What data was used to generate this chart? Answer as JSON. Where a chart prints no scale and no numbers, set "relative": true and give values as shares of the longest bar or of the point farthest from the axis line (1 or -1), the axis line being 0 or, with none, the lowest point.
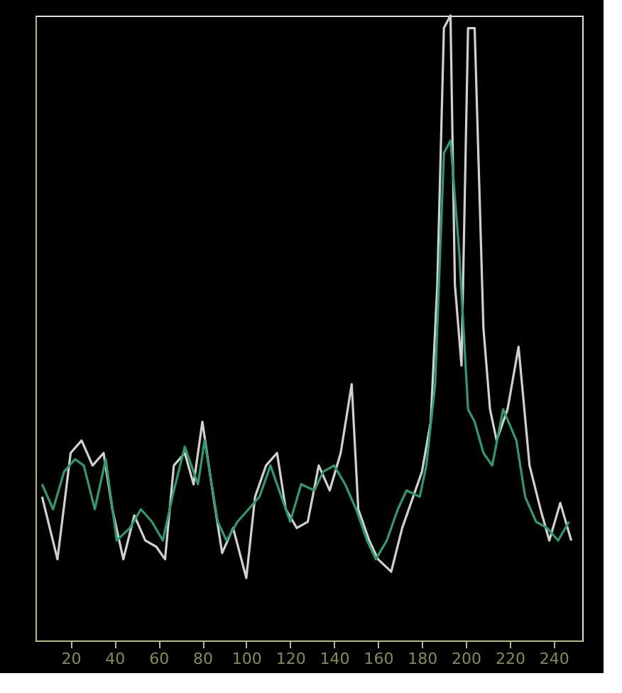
{
  "chart_data": {
    "type": "line",
    "relative": true,
    "xlim": [
      4,
      253
    ],
    "xticks": [
      20,
      40,
      60,
      80,
      100,
      120,
      140,
      160,
      180,
      200,
      220,
      240
    ],
    "grid": false,
    "legend": false,
    "marker": "none",
    "line_style": "solid",
    "series": [
      {
        "color": "#d0d0d0",
        "x": [
          7,
          14,
          20,
          25,
          30,
          35,
          39,
          44,
          49,
          54,
          59,
          63,
          67,
          72,
          76,
          80,
          85,
          89,
          94,
          100,
          104,
          109,
          114,
          118,
          123,
          128,
          133,
          138,
          143,
          148,
          151,
          156,
          160,
          166,
          171,
          175,
          180,
          184,
          187,
          190,
          193,
          195,
          198,
          201,
          204,
          208,
          211,
          214,
          219,
          224,
          229,
          234,
          238,
          243,
          248
        ],
        "values": [
          0.23,
          0.13,
          0.3,
          0.32,
          0.28,
          0.3,
          0.21,
          0.13,
          0.2,
          0.16,
          0.15,
          0.13,
          0.28,
          0.3,
          0.25,
          0.35,
          0.23,
          0.14,
          0.18,
          0.1,
          0.23,
          0.28,
          0.3,
          0.21,
          0.18,
          0.19,
          0.28,
          0.24,
          0.3,
          0.41,
          0.21,
          0.16,
          0.13,
          0.11,
          0.18,
          0.22,
          0.27,
          0.35,
          0.57,
          0.98,
          1.0,
          0.57,
          0.44,
          0.98,
          0.98,
          0.5,
          0.37,
          0.32,
          0.37,
          0.47,
          0.28,
          0.21,
          0.16,
          0.22,
          0.16
        ]
      },
      {
        "color": "#2e9a6e",
        "x": [
          7,
          12,
          17,
          22,
          26,
          31,
          36,
          41,
          47,
          52,
          57,
          62,
          67,
          72,
          78,
          81,
          87,
          91,
          96,
          101,
          106,
          111,
          116,
          120,
          125,
          131,
          135,
          140,
          145,
          150,
          155,
          159,
          164,
          169,
          173,
          179,
          182,
          186,
          190,
          193,
          197,
          201,
          204,
          208,
          212,
          217,
          223,
          227,
          232,
          237,
          242,
          247
        ],
        "values": [
          0.25,
          0.21,
          0.27,
          0.29,
          0.28,
          0.21,
          0.29,
          0.16,
          0.18,
          0.21,
          0.19,
          0.16,
          0.24,
          0.31,
          0.25,
          0.32,
          0.19,
          0.16,
          0.19,
          0.21,
          0.23,
          0.28,
          0.23,
          0.19,
          0.25,
          0.24,
          0.27,
          0.28,
          0.25,
          0.21,
          0.16,
          0.13,
          0.16,
          0.21,
          0.24,
          0.23,
          0.28,
          0.41,
          0.78,
          0.8,
          0.62,
          0.37,
          0.35,
          0.3,
          0.28,
          0.37,
          0.32,
          0.23,
          0.19,
          0.18,
          0.16,
          0.19
        ]
      }
    ]
  }
}
